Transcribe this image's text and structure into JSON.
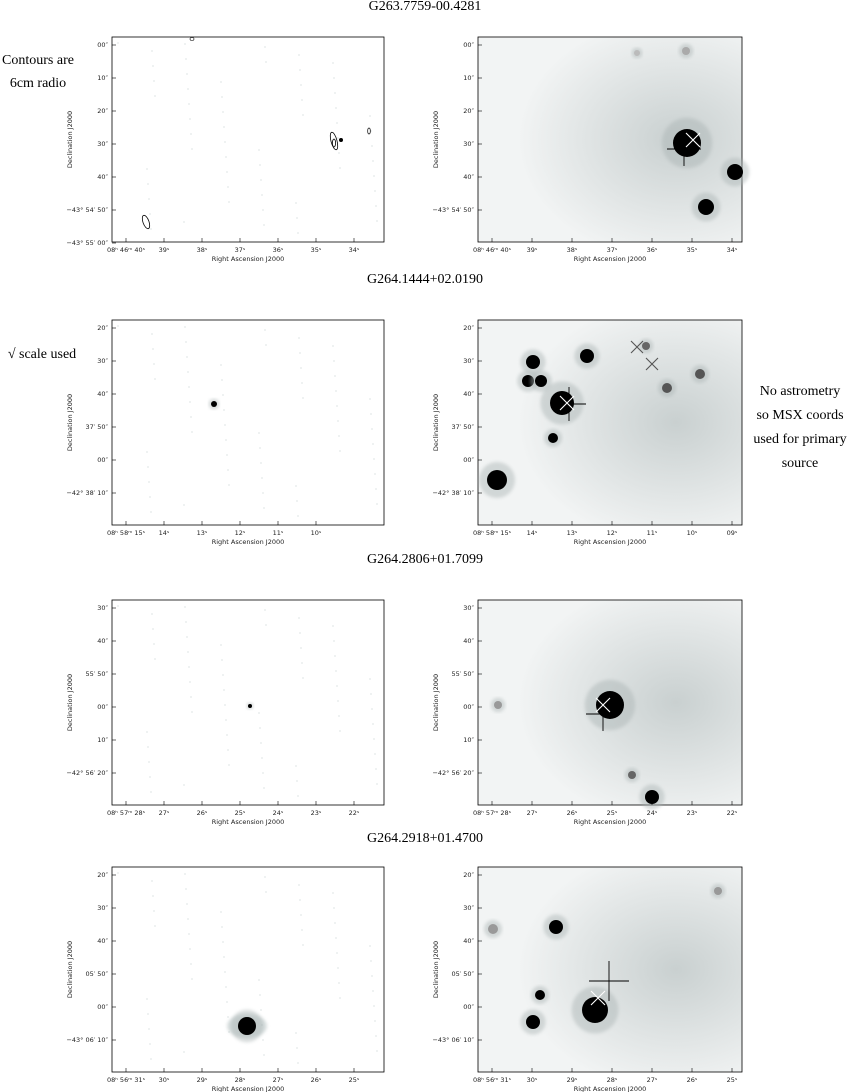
{
  "axis_labels": {
    "y": "Declination J2000",
    "x": "Right Ascension J2000"
  },
  "notes": {
    "contours": [
      "Contours are",
      "6cm radio"
    ],
    "sqrt": [
      "√ scale used"
    ],
    "astrometry": [
      "No astrometry",
      "so MSX coords",
      "used for primary",
      "source"
    ]
  },
  "figures": [
    {
      "title": "G263.7759-00.4281",
      "left": {
        "yticks": [
          "00″",
          "10″",
          "20″",
          "30″",
          "40″",
          "−43° 54′ 50″",
          "−43° 55′ 00″"
        ],
        "xticks": [
          "08ʰ 46ᵐ 40ˢ",
          "39ˢ",
          "38ˢ",
          "37ˢ",
          "36ˢ",
          "35ˢ",
          "34ˢ"
        ]
      },
      "right": {
        "yticks": [
          "00″",
          "10″",
          "20″",
          "30″",
          "40″",
          "−43° 54′ 50″"
        ],
        "xticks": [
          "08ʰ 46ᵐ 40ˢ",
          "39ˢ",
          "38ˢ",
          "37ˢ",
          "36ˢ",
          "35ˢ",
          "34ˢ"
        ]
      }
    },
    {
      "title": "G264.1444+02.0190",
      "left": {
        "yticks": [
          "20″",
          "30″",
          "40″",
          "37′ 50″",
          "00″",
          "−42° 38′ 10″"
        ],
        "xticks": [
          "08ʰ 58ᵐ 15ˢ",
          "14ˢ",
          "13ˢ",
          "12ˢ",
          "11ˢ",
          "10ˢ"
        ]
      },
      "right": {
        "yticks": [
          "20″",
          "30″",
          "40″",
          "37′ 50″",
          "00″",
          "−42° 38′ 10″"
        ],
        "xticks": [
          "08ʰ 58ᵐ 15ˢ",
          "14ˢ",
          "13ˢ",
          "12ˢ",
          "11ˢ",
          "10ˢ",
          "09ˢ"
        ]
      }
    },
    {
      "title": "G264.2806+01.7099",
      "left": {
        "yticks": [
          "30″",
          "40″",
          "55′ 50″",
          "00″",
          "10″",
          "−42° 56′ 20″"
        ],
        "xticks": [
          "08ʰ 57ᵐ 28ˢ",
          "27ˢ",
          "26ˢ",
          "25ˢ",
          "24ˢ",
          "23ˢ",
          "22ˢ"
        ]
      },
      "right": {
        "yticks": [
          "30″",
          "40″",
          "55′ 50″",
          "00″",
          "10″",
          "−42° 56′ 20″"
        ],
        "xticks": [
          "08ʰ 57ᵐ 28ˢ",
          "27ˢ",
          "26ˢ",
          "25ˢ",
          "24ˢ",
          "23ˢ",
          "22ˢ"
        ]
      }
    },
    {
      "title": "G264.2918+01.4700",
      "left": {
        "yticks": [
          "20″",
          "30″",
          "40″",
          "05′ 50″",
          "00″",
          "−43° 06′ 10″"
        ],
        "xticks": [
          "08ʰ 56ᵐ 31ˢ",
          "30ˢ",
          "29ˢ",
          "28ˢ",
          "27ˢ",
          "26ˢ",
          "25ˢ"
        ]
      },
      "right": {
        "yticks": [
          "20″",
          "30″",
          "40″",
          "05′ 50″",
          "00″",
          "−43° 06′ 10″"
        ],
        "xticks": [
          "08ʰ 56ᵐ 31ˢ",
          "30ˢ",
          "29ˢ",
          "28ˢ",
          "27ˢ",
          "26ˢ",
          "25ˢ"
        ]
      }
    }
  ]
}
